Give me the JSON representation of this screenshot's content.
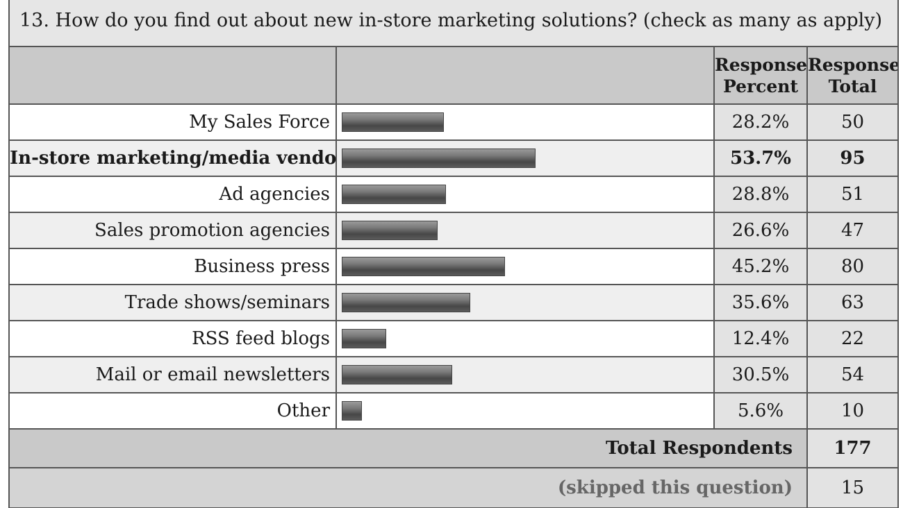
{
  "question": "13. How do you find out about new in-store marketing solutions? (check as many as apply)",
  "headers": {
    "percent_line1": "Response",
    "percent_line2": "Percent",
    "total_line1": "Response",
    "total_line2": "Total"
  },
  "chart_data": {
    "type": "bar",
    "orientation": "horizontal",
    "title": "13. How do you find out about new in-store marketing solutions? (check as many as apply)",
    "categories": [
      "My Sales Force",
      "In-store marketing/media vendors",
      "Ad agencies",
      "Sales promotion agencies",
      "Business press",
      "Trade shows/seminars",
      "RSS feed blogs",
      "Mail or email newsletters",
      "Other"
    ],
    "percent_labels": [
      "28.2%",
      "53.7%",
      "28.8%",
      "26.6%",
      "45.2%",
      "35.6%",
      "12.4%",
      "30.5%",
      "5.6%"
    ],
    "percent_values": [
      28.2,
      53.7,
      28.8,
      26.6,
      45.2,
      35.6,
      12.4,
      30.5,
      5.6
    ],
    "totals": [
      "50",
      "95",
      "51",
      "47",
      "80",
      "63",
      "22",
      "54",
      "10"
    ],
    "highlighted_index": 1,
    "xlim": [
      0,
      100
    ],
    "bar_color": "#5a5a5a"
  },
  "summary": {
    "total_label": "Total Respondents",
    "total_value": "177",
    "skipped_label": "(skipped this question)",
    "skipped_value": "15"
  }
}
